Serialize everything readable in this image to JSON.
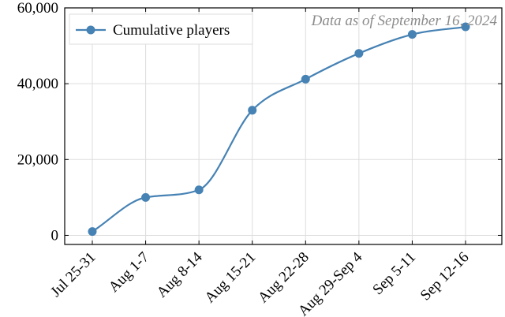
{
  "chart_data": {
    "type": "line",
    "title": "",
    "xlabel": "",
    "ylabel": "",
    "categories": [
      "Jul 25-31",
      "Aug 1-7",
      "Aug 8-14",
      "Aug 15-21",
      "Aug 22-28",
      "Aug 29-Sep 4",
      "Sep 5-11",
      "Sep 12-16"
    ],
    "series": [
      {
        "name": "Cumulative players",
        "values": [
          1000,
          10000,
          12000,
          33000,
          41200,
          48000,
          53000,
          55000
        ]
      }
    ],
    "ylim": [
      -2400,
      60000
    ],
    "yticks": [
      0,
      20000,
      40000,
      60000
    ],
    "ytick_labels": [
      "0",
      "20,000",
      "40,000",
      "60,000"
    ],
    "grid": true,
    "legend_position": "top-left",
    "annotation": "Data as of September 16, 2024",
    "colors": {
      "line": "#4682b4",
      "grid": "#dddddd",
      "axis": "#000000",
      "annotation": "#8c8c8c"
    }
  }
}
